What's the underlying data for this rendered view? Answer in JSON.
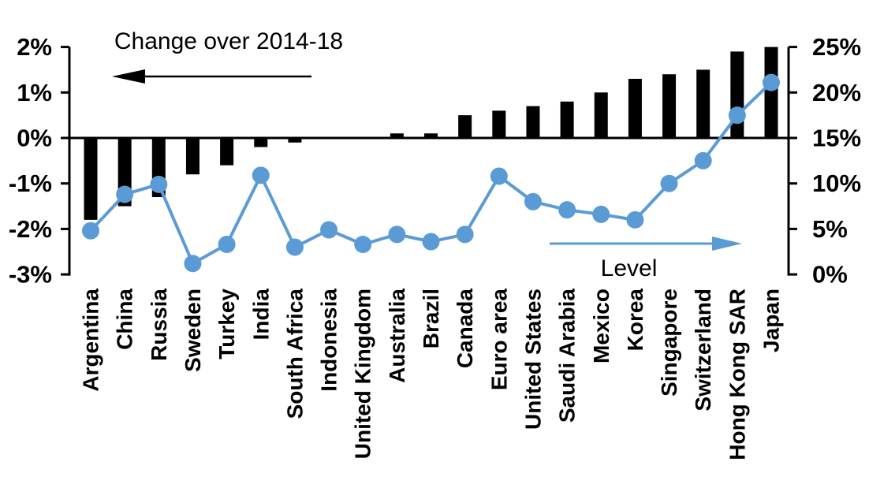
{
  "chart_data": {
    "type": "bar+line (dual axis)",
    "categories": [
      "Argentina",
      "China",
      "Russia",
      "Sweden",
      "Turkey",
      "India",
      "South Africa",
      "Indonesia",
      "United Kingdom",
      "Australia",
      "Brazil",
      "Canada",
      "Euro area",
      "United States",
      "Saudi Arabia",
      "Mexico",
      "Korea",
      "Singapore",
      "Switzerland",
      "Hong Kong SAR",
      "Japan"
    ],
    "series": [
      {
        "name": "Change over 2014-18",
        "type": "bar",
        "axis": "left",
        "color": "#000000",
        "unit": "percentage points",
        "values": [
          -1.8,
          -1.5,
          -1.3,
          -0.8,
          -0.6,
          -0.2,
          -0.1,
          0,
          0,
          0.1,
          0.1,
          0.5,
          0.6,
          0.7,
          0.8,
          1.0,
          1.3,
          1.4,
          1.5,
          1.9,
          2.0
        ]
      },
      {
        "name": "Level",
        "type": "line",
        "axis": "right",
        "color": "#5B9BD5",
        "unit": "percent",
        "values": [
          4.8,
          8.8,
          9.9,
          1.2,
          3.3,
          10.9,
          3.0,
          4.9,
          3.3,
          4.4,
          3.6,
          4.4,
          10.8,
          8.0,
          7.1,
          6.6,
          6.0,
          10.0,
          12.5,
          17.5,
          21.1
        ]
      }
    ],
    "left_axis": {
      "min": -3,
      "max": 2,
      "tick_values": [
        2,
        1,
        0,
        -1,
        -2,
        -3
      ],
      "tick_labels": [
        "2%",
        "1%",
        "0%",
        "-1%",
        "-2%",
        "-3%"
      ]
    },
    "right_axis": {
      "min": 0,
      "max": 25,
      "tick_values": [
        25,
        20,
        15,
        10,
        5,
        0
      ],
      "tick_labels": [
        "25%",
        "20%",
        "15%",
        "10%",
        "5%",
        "0%"
      ]
    },
    "annotations": [
      {
        "text": "Change over 2014-18",
        "arrow_direction": "left",
        "color": "#000000"
      },
      {
        "text": "Level",
        "arrow_direction": "right",
        "color": "#5B9BD5"
      }
    ],
    "grid": "off",
    "legend_position": "as in-plot annotations with arrows"
  }
}
